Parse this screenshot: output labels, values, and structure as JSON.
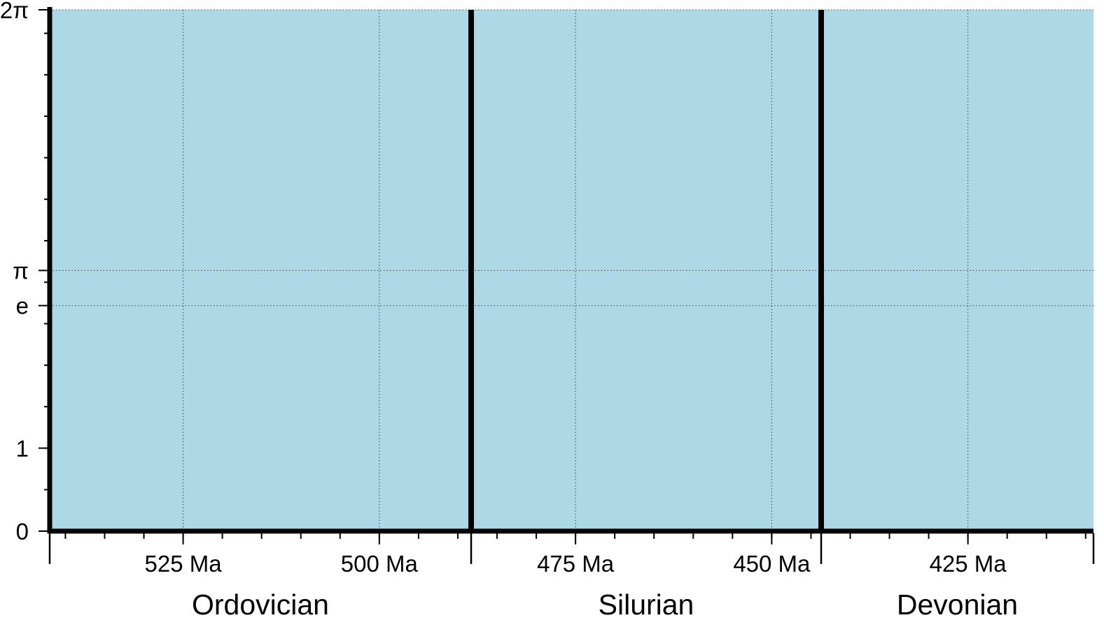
{
  "chart_data": {
    "type": "area",
    "title": "",
    "xlabel": "",
    "ylabel": "",
    "plot_background_color": "#add8e6",
    "frame_color": "#000000",
    "grid": true,
    "x_axis": {
      "unit": "Ma",
      "reversed": true,
      "xlim": [
        542,
        409
      ],
      "major_ticks": [
        {
          "value": 525,
          "label": "525 Ma"
        },
        {
          "value": 500,
          "label": "500 Ma"
        },
        {
          "value": 475,
          "label": "475 Ma"
        },
        {
          "value": 450,
          "label": "450 Ma"
        },
        {
          "value": 425,
          "label": "425 Ma"
        }
      ],
      "minor_tick_interval": 5,
      "period_boundaries": [
        488.3,
        443.7
      ]
    },
    "periods": [
      {
        "name": "Ordovician",
        "start": 542,
        "end": 488.3
      },
      {
        "name": "Silurian",
        "start": 488.3,
        "end": 443.7
      },
      {
        "name": "Devonian",
        "start": 443.7,
        "end": 409
      }
    ],
    "y_axis": {
      "ylim": [
        0,
        6.283185
      ],
      "major_ticks": [
        {
          "value": 0,
          "label": "0"
        },
        {
          "value": 1,
          "label": "1"
        },
        {
          "value": 2.718282,
          "label": "e"
        },
        {
          "value": 3.141593,
          "label": "π"
        },
        {
          "value": 6.283185,
          "label": "2π"
        }
      ],
      "minor_tick_interval": 0.5,
      "grid_values": [
        2.718282,
        3.141593
      ]
    }
  }
}
